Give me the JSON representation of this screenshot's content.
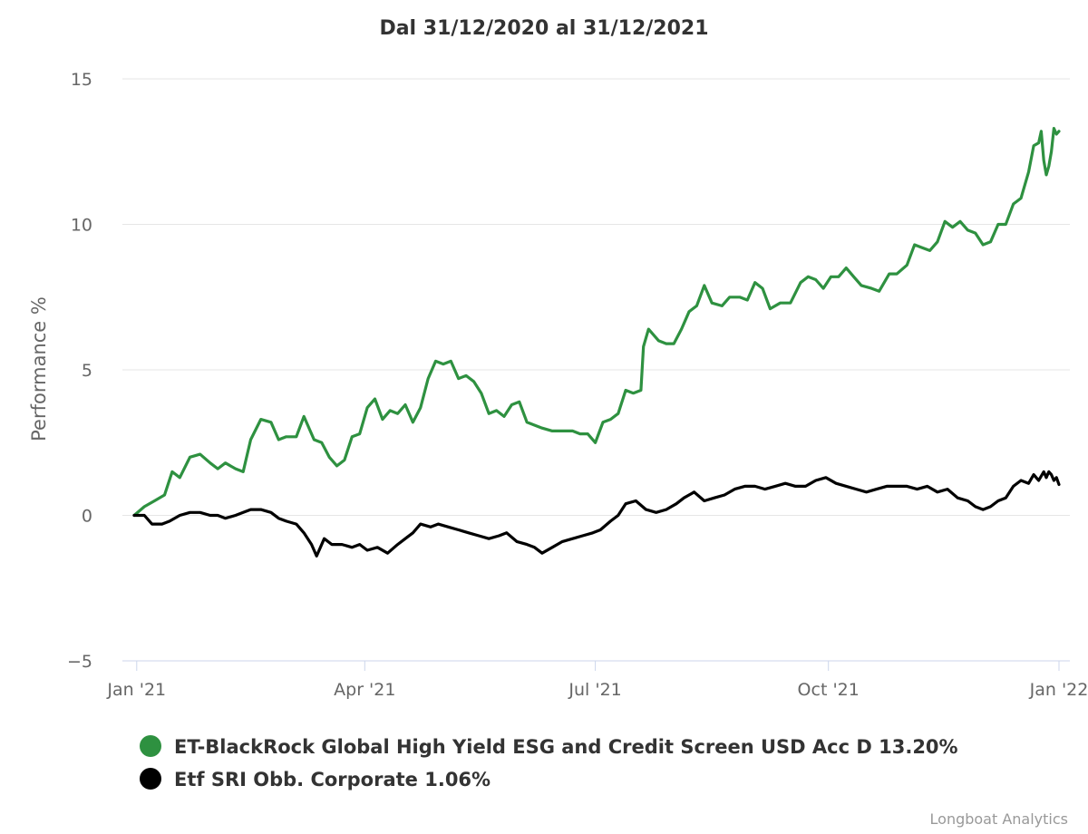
{
  "chart_data": {
    "type": "line",
    "title": "Dal 31/12/2020 al 31/12/2021",
    "ylabel": "Performance %",
    "ylim": [
      -5,
      15
    ],
    "y_ticks": [
      "15",
      "10",
      "5",
      "0",
      "−5"
    ],
    "y_tick_values": [
      15,
      10,
      5,
      0,
      -5
    ],
    "xlim": [
      "2020-12-31",
      "2021-12-31"
    ],
    "x_ticks": [
      {
        "label": "Jan '21",
        "date": "2021-01-01"
      },
      {
        "label": "Apr '21",
        "date": "2021-04-01"
      },
      {
        "label": "Jul '21",
        "date": "2021-07-01"
      },
      {
        "label": "Oct '21",
        "date": "2021-10-01"
      },
      {
        "label": "Jan '22",
        "date": "2022-01-01"
      }
    ],
    "grid": "horizontal",
    "legend_position": "bottom",
    "series": [
      {
        "name": "ET-BlackRock Global High Yield ESG and Credit Screen USD Acc D 13.20%",
        "color": "#2e9140",
        "points": [
          [
            "2020-12-31",
            0
          ],
          [
            "2021-01-04",
            0.3
          ],
          [
            "2021-01-08",
            0.5
          ],
          [
            "2021-01-12",
            0.7
          ],
          [
            "2021-01-15",
            1.5
          ],
          [
            "2021-01-18",
            1.3
          ],
          [
            "2021-01-22",
            2.0
          ],
          [
            "2021-01-26",
            2.1
          ],
          [
            "2021-01-30",
            1.8
          ],
          [
            "2021-02-02",
            1.6
          ],
          [
            "2021-02-05",
            1.8
          ],
          [
            "2021-02-09",
            1.6
          ],
          [
            "2021-02-12",
            1.5
          ],
          [
            "2021-02-15",
            2.6
          ],
          [
            "2021-02-19",
            3.3
          ],
          [
            "2021-02-23",
            3.2
          ],
          [
            "2021-02-26",
            2.6
          ],
          [
            "2021-03-01",
            2.7
          ],
          [
            "2021-03-05",
            2.7
          ],
          [
            "2021-03-08",
            3.4
          ],
          [
            "2021-03-12",
            2.6
          ],
          [
            "2021-03-15",
            2.5
          ],
          [
            "2021-03-18",
            2.0
          ],
          [
            "2021-03-21",
            1.7
          ],
          [
            "2021-03-24",
            1.9
          ],
          [
            "2021-03-27",
            2.7
          ],
          [
            "2021-03-30",
            2.8
          ],
          [
            "2021-04-02",
            3.7
          ],
          [
            "2021-04-05",
            4.0
          ],
          [
            "2021-04-08",
            3.3
          ],
          [
            "2021-04-11",
            3.6
          ],
          [
            "2021-04-14",
            3.5
          ],
          [
            "2021-04-17",
            3.8
          ],
          [
            "2021-04-20",
            3.2
          ],
          [
            "2021-04-23",
            3.7
          ],
          [
            "2021-04-26",
            4.7
          ],
          [
            "2021-04-29",
            5.3
          ],
          [
            "2021-05-02",
            5.2
          ],
          [
            "2021-05-05",
            5.3
          ],
          [
            "2021-05-08",
            4.7
          ],
          [
            "2021-05-11",
            4.8
          ],
          [
            "2021-05-14",
            4.6
          ],
          [
            "2021-05-17",
            4.2
          ],
          [
            "2021-05-20",
            3.5
          ],
          [
            "2021-05-23",
            3.6
          ],
          [
            "2021-05-26",
            3.4
          ],
          [
            "2021-05-29",
            3.8
          ],
          [
            "2021-06-01",
            3.9
          ],
          [
            "2021-06-04",
            3.2
          ],
          [
            "2021-06-07",
            3.1
          ],
          [
            "2021-06-10",
            3.0
          ],
          [
            "2021-06-14",
            2.9
          ],
          [
            "2021-06-18",
            2.9
          ],
          [
            "2021-06-22",
            2.9
          ],
          [
            "2021-06-25",
            2.8
          ],
          [
            "2021-06-28",
            2.8
          ],
          [
            "2021-07-01",
            2.5
          ],
          [
            "2021-07-04",
            3.2
          ],
          [
            "2021-07-07",
            3.3
          ],
          [
            "2021-07-10",
            3.5
          ],
          [
            "2021-07-13",
            4.3
          ],
          [
            "2021-07-16",
            4.2
          ],
          [
            "2021-07-19",
            4.3
          ],
          [
            "2021-07-20",
            5.8
          ],
          [
            "2021-07-22",
            6.4
          ],
          [
            "2021-07-26",
            6.0
          ],
          [
            "2021-07-29",
            5.9
          ],
          [
            "2021-08-01",
            5.9
          ],
          [
            "2021-08-04",
            6.4
          ],
          [
            "2021-08-07",
            7.0
          ],
          [
            "2021-08-10",
            7.2
          ],
          [
            "2021-08-13",
            7.9
          ],
          [
            "2021-08-16",
            7.3
          ],
          [
            "2021-08-20",
            7.2
          ],
          [
            "2021-08-23",
            7.5
          ],
          [
            "2021-08-27",
            7.5
          ],
          [
            "2021-08-30",
            7.4
          ],
          [
            "2021-09-02",
            8.0
          ],
          [
            "2021-09-05",
            7.8
          ],
          [
            "2021-09-08",
            7.1
          ],
          [
            "2021-09-12",
            7.3
          ],
          [
            "2021-09-16",
            7.3
          ],
          [
            "2021-09-20",
            8.0
          ],
          [
            "2021-09-23",
            8.2
          ],
          [
            "2021-09-26",
            8.1
          ],
          [
            "2021-09-29",
            7.8
          ],
          [
            "2021-10-02",
            8.2
          ],
          [
            "2021-10-05",
            8.2
          ],
          [
            "2021-10-08",
            8.5
          ],
          [
            "2021-10-11",
            8.2
          ],
          [
            "2021-10-14",
            7.9
          ],
          [
            "2021-10-18",
            7.8
          ],
          [
            "2021-10-21",
            7.7
          ],
          [
            "2021-10-25",
            8.3
          ],
          [
            "2021-10-28",
            8.3
          ],
          [
            "2021-11-01",
            8.6
          ],
          [
            "2021-11-04",
            9.3
          ],
          [
            "2021-11-07",
            9.2
          ],
          [
            "2021-11-10",
            9.1
          ],
          [
            "2021-11-13",
            9.4
          ],
          [
            "2021-11-16",
            10.1
          ],
          [
            "2021-11-19",
            9.9
          ],
          [
            "2021-11-22",
            10.1
          ],
          [
            "2021-11-25",
            9.8
          ],
          [
            "2021-11-28",
            9.7
          ],
          [
            "2021-12-01",
            9.3
          ],
          [
            "2021-12-04",
            9.4
          ],
          [
            "2021-12-07",
            10.0
          ],
          [
            "2021-12-10",
            10.0
          ],
          [
            "2021-12-13",
            10.7
          ],
          [
            "2021-12-16",
            10.9
          ],
          [
            "2021-12-19",
            11.8
          ],
          [
            "2021-12-21",
            12.7
          ],
          [
            "2021-12-23",
            12.8
          ],
          [
            "2021-12-24",
            13.2
          ],
          [
            "2021-12-25",
            12.2
          ],
          [
            "2021-12-26",
            11.7
          ],
          [
            "2021-12-27",
            12.0
          ],
          [
            "2021-12-28",
            12.5
          ],
          [
            "2021-12-29",
            13.3
          ],
          [
            "2021-12-30",
            13.1
          ],
          [
            "2021-12-31",
            13.2
          ]
        ]
      },
      {
        "name": "Etf SRI Obb. Corporate 1.06%",
        "color": "#000000",
        "points": [
          [
            "2020-12-31",
            0
          ],
          [
            "2021-01-04",
            0.0
          ],
          [
            "2021-01-07",
            -0.3
          ],
          [
            "2021-01-11",
            -0.3
          ],
          [
            "2021-01-14",
            -0.2
          ],
          [
            "2021-01-18",
            0.0
          ],
          [
            "2021-01-22",
            0.1
          ],
          [
            "2021-01-26",
            0.1
          ],
          [
            "2021-01-30",
            0.0
          ],
          [
            "2021-02-02",
            0.0
          ],
          [
            "2021-02-05",
            -0.1
          ],
          [
            "2021-02-09",
            0.0
          ],
          [
            "2021-02-12",
            0.1
          ],
          [
            "2021-02-15",
            0.2
          ],
          [
            "2021-02-19",
            0.2
          ],
          [
            "2021-02-23",
            0.1
          ],
          [
            "2021-02-26",
            -0.1
          ],
          [
            "2021-03-01",
            -0.2
          ],
          [
            "2021-03-05",
            -0.3
          ],
          [
            "2021-03-08",
            -0.6
          ],
          [
            "2021-03-11",
            -1.0
          ],
          [
            "2021-03-13",
            -1.4
          ],
          [
            "2021-03-16",
            -0.8
          ],
          [
            "2021-03-19",
            -1.0
          ],
          [
            "2021-03-23",
            -1.0
          ],
          [
            "2021-03-27",
            -1.1
          ],
          [
            "2021-03-30",
            -1.0
          ],
          [
            "2021-04-02",
            -1.2
          ],
          [
            "2021-04-06",
            -1.1
          ],
          [
            "2021-04-10",
            -1.3
          ],
          [
            "2021-04-14",
            -1.0
          ],
          [
            "2021-04-17",
            -0.8
          ],
          [
            "2021-04-20",
            -0.6
          ],
          [
            "2021-04-23",
            -0.3
          ],
          [
            "2021-04-27",
            -0.4
          ],
          [
            "2021-04-30",
            -0.3
          ],
          [
            "2021-05-04",
            -0.4
          ],
          [
            "2021-05-08",
            -0.5
          ],
          [
            "2021-05-12",
            -0.6
          ],
          [
            "2021-05-16",
            -0.7
          ],
          [
            "2021-05-20",
            -0.8
          ],
          [
            "2021-05-24",
            -0.7
          ],
          [
            "2021-05-27",
            -0.6
          ],
          [
            "2021-05-31",
            -0.9
          ],
          [
            "2021-06-04",
            -1.0
          ],
          [
            "2021-06-07",
            -1.1
          ],
          [
            "2021-06-10",
            -1.3
          ],
          [
            "2021-06-14",
            -1.1
          ],
          [
            "2021-06-18",
            -0.9
          ],
          [
            "2021-06-22",
            -0.8
          ],
          [
            "2021-06-26",
            -0.7
          ],
          [
            "2021-06-30",
            -0.6
          ],
          [
            "2021-07-03",
            -0.5
          ],
          [
            "2021-07-07",
            -0.2
          ],
          [
            "2021-07-10",
            0.0
          ],
          [
            "2021-07-13",
            0.4
          ],
          [
            "2021-07-17",
            0.5
          ],
          [
            "2021-07-21",
            0.2
          ],
          [
            "2021-07-25",
            0.1
          ],
          [
            "2021-07-29",
            0.2
          ],
          [
            "2021-08-02",
            0.4
          ],
          [
            "2021-08-05",
            0.6
          ],
          [
            "2021-08-09",
            0.8
          ],
          [
            "2021-08-13",
            0.5
          ],
          [
            "2021-08-17",
            0.6
          ],
          [
            "2021-08-21",
            0.7
          ],
          [
            "2021-08-25",
            0.9
          ],
          [
            "2021-08-29",
            1.0
          ],
          [
            "2021-09-02",
            1.0
          ],
          [
            "2021-09-06",
            0.9
          ],
          [
            "2021-09-10",
            1.0
          ],
          [
            "2021-09-14",
            1.1
          ],
          [
            "2021-09-18",
            1.0
          ],
          [
            "2021-09-22",
            1.0
          ],
          [
            "2021-09-26",
            1.2
          ],
          [
            "2021-09-30",
            1.3
          ],
          [
            "2021-10-04",
            1.1
          ],
          [
            "2021-10-08",
            1.0
          ],
          [
            "2021-10-12",
            0.9
          ],
          [
            "2021-10-16",
            0.8
          ],
          [
            "2021-10-20",
            0.9
          ],
          [
            "2021-10-24",
            1.0
          ],
          [
            "2021-10-28",
            1.0
          ],
          [
            "2021-11-01",
            1.0
          ],
          [
            "2021-11-05",
            0.9
          ],
          [
            "2021-11-09",
            1.0
          ],
          [
            "2021-11-13",
            0.8
          ],
          [
            "2021-11-17",
            0.9
          ],
          [
            "2021-11-21",
            0.6
          ],
          [
            "2021-11-25",
            0.5
          ],
          [
            "2021-11-28",
            0.3
          ],
          [
            "2021-12-01",
            0.2
          ],
          [
            "2021-12-04",
            0.3
          ],
          [
            "2021-12-07",
            0.5
          ],
          [
            "2021-12-10",
            0.6
          ],
          [
            "2021-12-13",
            1.0
          ],
          [
            "2021-12-16",
            1.2
          ],
          [
            "2021-12-19",
            1.1
          ],
          [
            "2021-12-21",
            1.4
          ],
          [
            "2021-12-23",
            1.2
          ],
          [
            "2021-12-25",
            1.5
          ],
          [
            "2021-12-26",
            1.3
          ],
          [
            "2021-12-27",
            1.5
          ],
          [
            "2021-12-28",
            1.4
          ],
          [
            "2021-12-29",
            1.2
          ],
          [
            "2021-12-30",
            1.3
          ],
          [
            "2021-12-31",
            1.06
          ]
        ]
      }
    ]
  },
  "credits": "Longboat Analytics"
}
